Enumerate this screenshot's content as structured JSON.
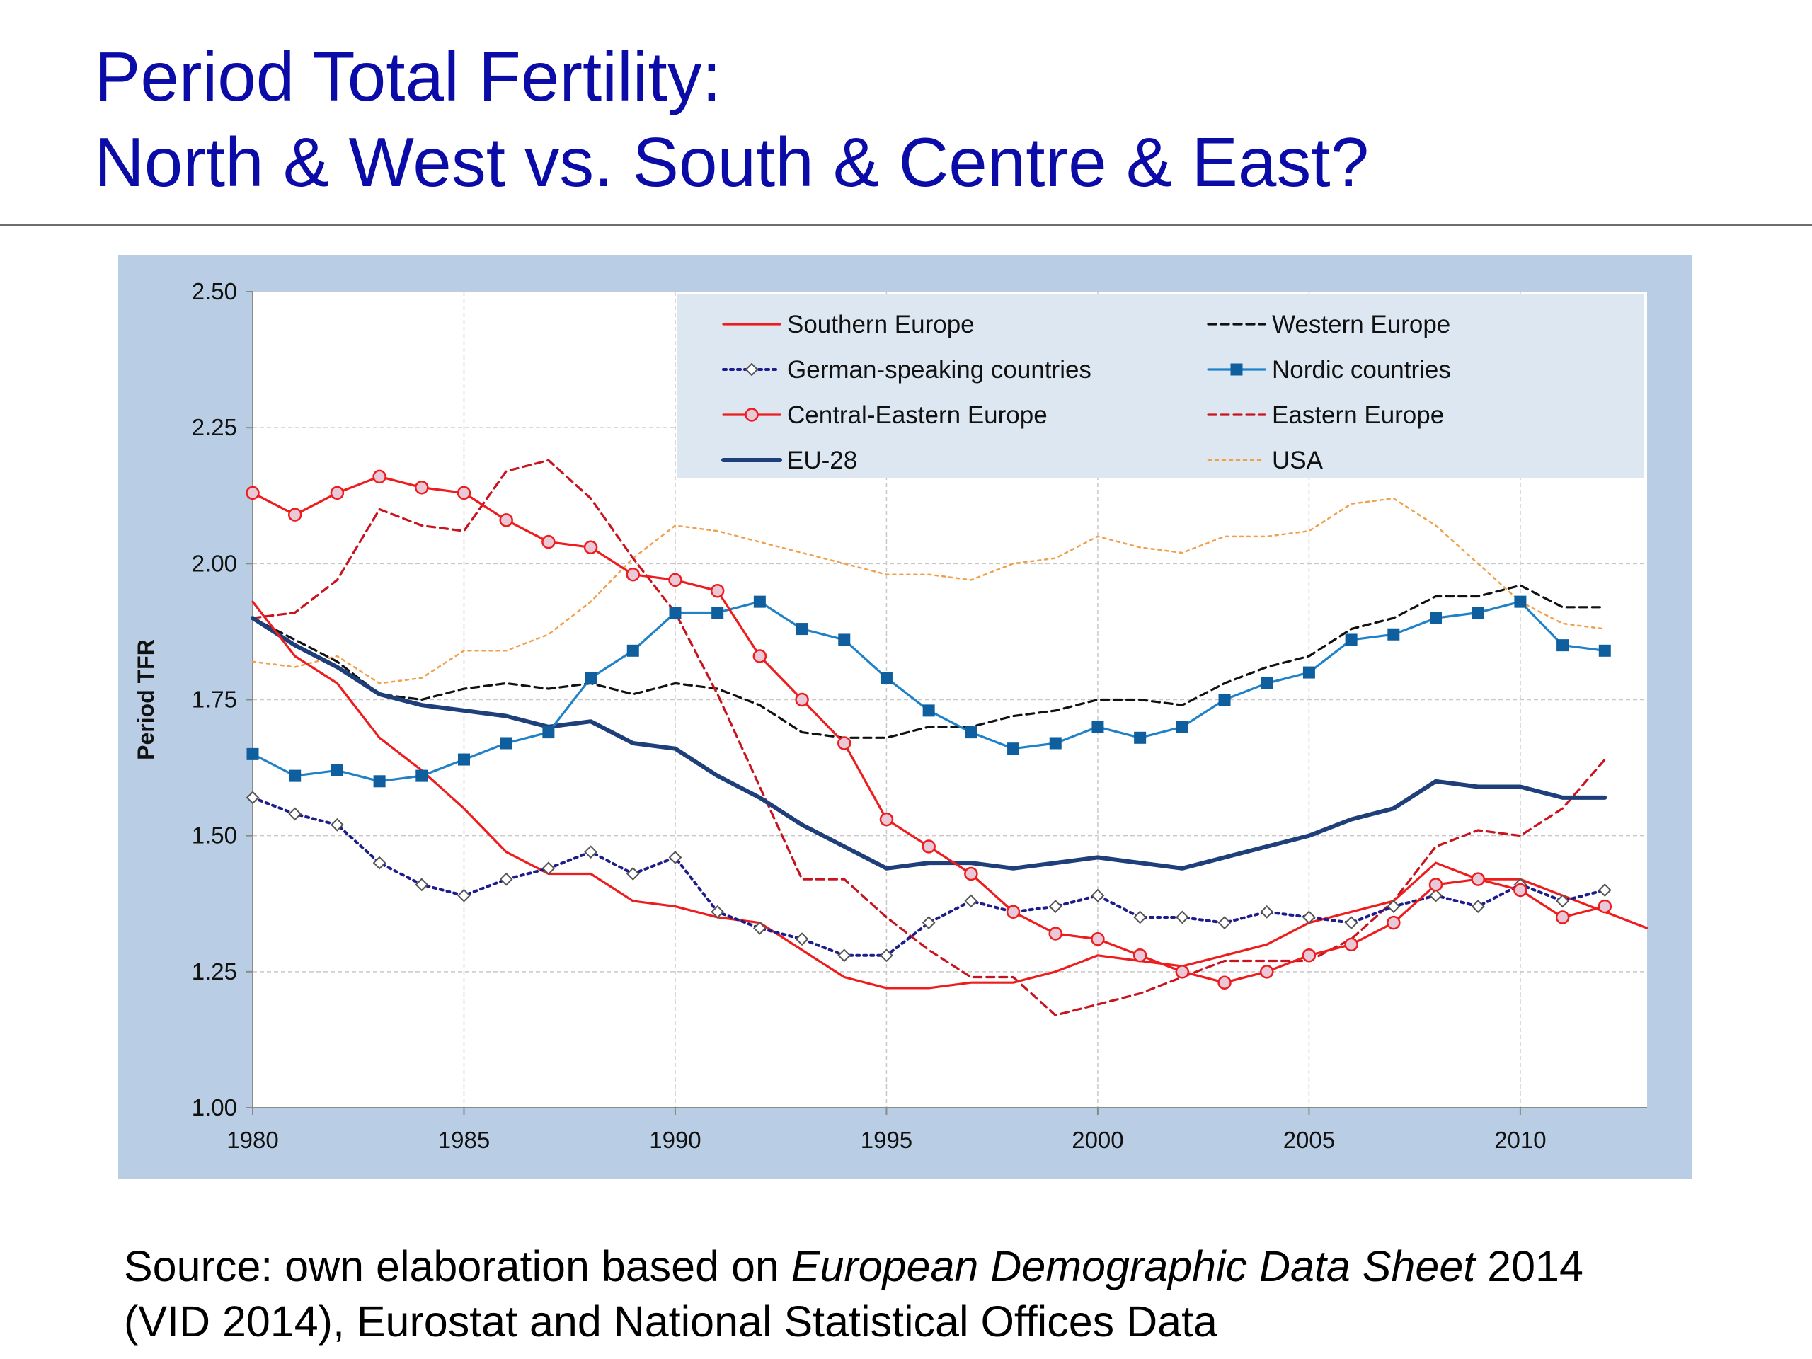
{
  "slide": {
    "title_line1": "Period Total Fertility:",
    "title_line2": "North & West vs. South & Centre & East?",
    "source_prefix": "Source: own elaboration based on ",
    "source_italic": "European Demographic Data Sheet",
    "source_suffix": " 2014",
    "source_line2": "(VID 2014), Eurostat and National Statistical Offices Data"
  },
  "colors": {
    "title": "#0b0ba8",
    "panel_background": "#b9cee4",
    "plot_background": "#ffffff",
    "legend_background": "#dde7f2",
    "gridline": "#c8c8c8"
  },
  "chart_data": {
    "type": "line",
    "title": "",
    "xlabel": "",
    "ylabel": "Period TFR",
    "xlim": [
      1980,
      2013
    ],
    "ylim": [
      1.0,
      2.5
    ],
    "xticks": [
      1980,
      1985,
      1990,
      1995,
      2000,
      2005,
      2010
    ],
    "yticks": [
      1.0,
      1.25,
      1.5,
      1.75,
      2.0,
      2.25,
      2.5
    ],
    "x_tick_labels": [
      "1980",
      "1985",
      "1990",
      "1995",
      "2000",
      "2005",
      "2010"
    ],
    "y_tick_labels": [
      "1.00",
      "1.25",
      "1.50",
      "1.75",
      "2.00",
      "2.25",
      "2.50"
    ],
    "grid": true,
    "legend_position": "top-right",
    "series": [
      {
        "name": "Southern Europe",
        "color": "#ee1c1c",
        "style": "solid",
        "marker": "none",
        "x": [
          1980,
          1981,
          1982,
          1983,
          1984,
          1985,
          1986,
          1987,
          1988,
          1989,
          1990,
          1991,
          1992,
          1993,
          1994,
          1995,
          1996,
          1997,
          1998,
          1999,
          2000,
          2001,
          2002,
          2003,
          2004,
          2005,
          2006,
          2007,
          2008,
          2009,
          2010,
          2011,
          2012,
          2013
        ],
        "values": [
          1.93,
          1.83,
          1.78,
          1.68,
          1.62,
          1.55,
          1.47,
          1.43,
          1.43,
          1.38,
          1.37,
          1.35,
          1.34,
          1.29,
          1.24,
          1.22,
          1.22,
          1.23,
          1.23,
          1.25,
          1.28,
          1.27,
          1.26,
          1.28,
          1.3,
          1.34,
          1.36,
          1.38,
          1.45,
          1.42,
          1.42,
          1.39,
          1.36,
          1.33
        ]
      },
      {
        "name": "Western Europe",
        "color": "#111111",
        "style": "dashed",
        "marker": "none",
        "x": [
          1980,
          1981,
          1982,
          1983,
          1984,
          1985,
          1986,
          1987,
          1988,
          1989,
          1990,
          1991,
          1992,
          1993,
          1994,
          1995,
          1996,
          1997,
          1998,
          1999,
          2000,
          2001,
          2002,
          2003,
          2004,
          2005,
          2006,
          2007,
          2008,
          2009,
          2010,
          2011,
          2012
        ],
        "values": [
          1.9,
          1.86,
          1.82,
          1.76,
          1.75,
          1.77,
          1.78,
          1.77,
          1.78,
          1.76,
          1.78,
          1.77,
          1.74,
          1.69,
          1.68,
          1.68,
          1.7,
          1.7,
          1.72,
          1.73,
          1.75,
          1.75,
          1.74,
          1.78,
          1.81,
          1.83,
          1.88,
          1.9,
          1.94,
          1.94,
          1.96,
          1.92,
          1.92
        ]
      },
      {
        "name": "German-speaking countries",
        "color": "#1c1c8c",
        "style": "dotted",
        "marker": "diamond",
        "x": [
          1980,
          1981,
          1982,
          1983,
          1984,
          1985,
          1986,
          1987,
          1988,
          1989,
          1990,
          1991,
          1992,
          1993,
          1994,
          1995,
          1996,
          1997,
          1998,
          1999,
          2000,
          2001,
          2002,
          2003,
          2004,
          2005,
          2006,
          2007,
          2008,
          2009,
          2010,
          2011,
          2012
        ],
        "values": [
          1.57,
          1.54,
          1.52,
          1.45,
          1.41,
          1.39,
          1.42,
          1.44,
          1.47,
          1.43,
          1.46,
          1.36,
          1.33,
          1.31,
          1.28,
          1.28,
          1.34,
          1.38,
          1.36,
          1.37,
          1.39,
          1.35,
          1.35,
          1.34,
          1.36,
          1.35,
          1.34,
          1.37,
          1.39,
          1.37,
          1.41,
          1.38,
          1.4
        ]
      },
      {
        "name": "Nordic countries",
        "color": "#1f82c8",
        "style": "solid",
        "marker": "square",
        "x": [
          1980,
          1981,
          1982,
          1983,
          1984,
          1985,
          1986,
          1987,
          1988,
          1989,
          1990,
          1991,
          1992,
          1993,
          1994,
          1995,
          1996,
          1997,
          1998,
          1999,
          2000,
          2001,
          2002,
          2003,
          2004,
          2005,
          2006,
          2007,
          2008,
          2009,
          2010,
          2011,
          2012
        ],
        "values": [
          1.65,
          1.61,
          1.62,
          1.6,
          1.61,
          1.64,
          1.67,
          1.69,
          1.79,
          1.84,
          1.91,
          1.91,
          1.93,
          1.88,
          1.86,
          1.79,
          1.73,
          1.69,
          1.66,
          1.67,
          1.7,
          1.68,
          1.7,
          1.75,
          1.78,
          1.8,
          1.86,
          1.87,
          1.9,
          1.91,
          1.93,
          1.85,
          1.84
        ]
      },
      {
        "name": "Central-Eastern Europe",
        "color": "#ee1c1c",
        "style": "solid",
        "marker": "circle",
        "x": [
          1980,
          1981,
          1982,
          1983,
          1984,
          1985,
          1986,
          1987,
          1988,
          1989,
          1990,
          1991,
          1992,
          1993,
          1994,
          1995,
          1996,
          1997,
          1998,
          1999,
          2000,
          2001,
          2002,
          2003,
          2004,
          2005,
          2006,
          2007,
          2008,
          2009,
          2010,
          2011,
          2012
        ],
        "values": [
          2.13,
          2.09,
          2.13,
          2.16,
          2.14,
          2.13,
          2.08,
          2.04,
          2.03,
          1.98,
          1.97,
          1.95,
          1.83,
          1.75,
          1.67,
          1.53,
          1.48,
          1.43,
          1.36,
          1.32,
          1.31,
          1.28,
          1.25,
          1.23,
          1.25,
          1.28,
          1.3,
          1.34,
          1.41,
          1.42,
          1.4,
          1.35,
          1.37
        ]
      },
      {
        "name": "Eastern Europe",
        "color": "#c8141e",
        "style": "dashed",
        "marker": "none",
        "x": [
          1980,
          1981,
          1982,
          1983,
          1984,
          1985,
          1986,
          1987,
          1988,
          1989,
          1990,
          1991,
          1992,
          1993,
          1994,
          1995,
          1996,
          1997,
          1998,
          1999,
          2000,
          2001,
          2002,
          2003,
          2004,
          2005,
          2006,
          2007,
          2008,
          2009,
          2010,
          2011,
          2012
        ],
        "values": [
          1.9,
          1.91,
          1.97,
          2.1,
          2.07,
          2.06,
          2.17,
          2.19,
          2.12,
          2.01,
          1.91,
          1.76,
          1.59,
          1.42,
          1.42,
          1.35,
          1.29,
          1.24,
          1.24,
          1.17,
          1.19,
          1.21,
          1.24,
          1.27,
          1.27,
          1.27,
          1.31,
          1.38,
          1.48,
          1.51,
          1.5,
          1.55,
          1.64
        ]
      },
      {
        "name": "EU-28",
        "color": "#1f3f7a",
        "style": "solid",
        "marker": "none",
        "x": [
          1980,
          1981,
          1982,
          1983,
          1984,
          1985,
          1986,
          1987,
          1988,
          1989,
          1990,
          1991,
          1992,
          1993,
          1994,
          1995,
          1996,
          1997,
          1998,
          1999,
          2000,
          2001,
          2002,
          2003,
          2004,
          2005,
          2006,
          2007,
          2008,
          2009,
          2010,
          2011,
          2012
        ],
        "values": [
          1.9,
          1.85,
          1.81,
          1.76,
          1.74,
          1.73,
          1.72,
          1.7,
          1.71,
          1.67,
          1.66,
          1.61,
          1.57,
          1.52,
          1.48,
          1.44,
          1.45,
          1.45,
          1.44,
          1.45,
          1.46,
          1.45,
          1.44,
          1.46,
          1.48,
          1.5,
          1.53,
          1.55,
          1.6,
          1.59,
          1.59,
          1.57,
          1.57
        ]
      },
      {
        "name": "USA",
        "color": "#f0a04a",
        "style": "dotted",
        "marker": "none",
        "x": [
          1980,
          1981,
          1982,
          1983,
          1984,
          1985,
          1986,
          1987,
          1988,
          1989,
          1990,
          1991,
          1992,
          1993,
          1994,
          1995,
          1996,
          1997,
          1998,
          1999,
          2000,
          2001,
          2002,
          2003,
          2004,
          2005,
          2006,
          2007,
          2008,
          2009,
          2010,
          2011,
          2012
        ],
        "values": [
          1.82,
          1.81,
          1.83,
          1.78,
          1.79,
          1.84,
          1.84,
          1.87,
          1.93,
          2.01,
          2.07,
          2.06,
          2.04,
          2.02,
          2.0,
          1.98,
          1.98,
          1.97,
          2.0,
          2.01,
          2.05,
          2.03,
          2.02,
          2.05,
          2.05,
          2.06,
          2.11,
          2.12,
          2.07,
          2.0,
          1.93,
          1.89,
          1.88
        ]
      }
    ]
  }
}
